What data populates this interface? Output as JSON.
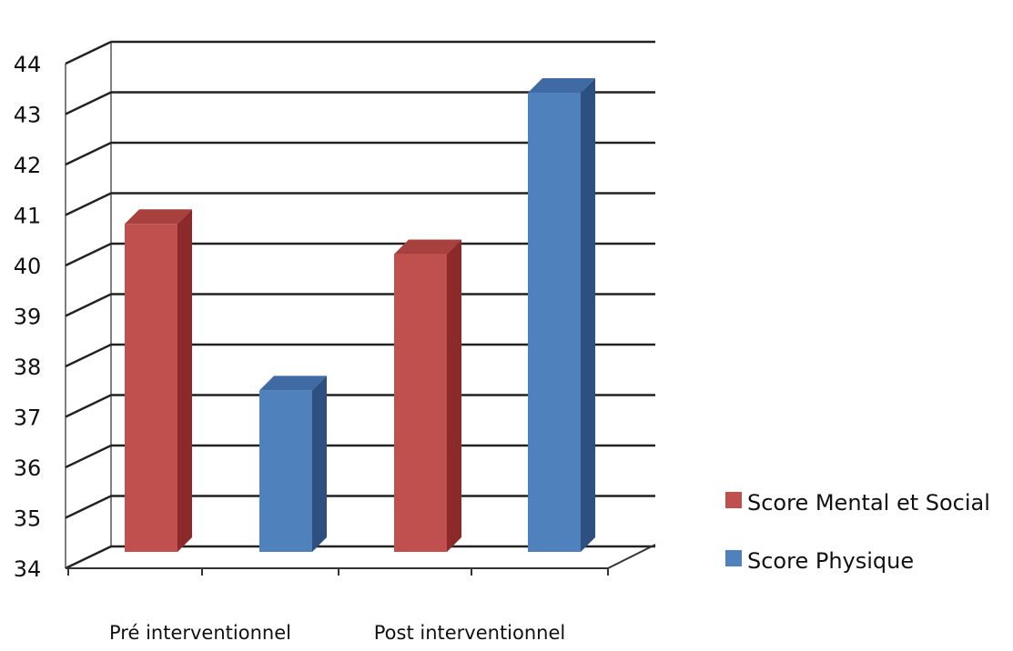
{
  "chart_data": {
    "type": "bar",
    "style": "3d-clustered-column",
    "categories": [
      "Pré interventionnel",
      "Post interventionnel"
    ],
    "series": [
      {
        "name": "Score Mental et Social",
        "values": [
          40.5,
          39.9
        ],
        "color": "#c0504d",
        "side_color": "#8b2a28",
        "top_color": "#a8403d"
      },
      {
        "name": "Score Physique",
        "values": [
          37.2,
          43.1
        ],
        "color": "#4f81bd",
        "side_color": "#2e5080",
        "top_color": "#3f6aa3"
      }
    ],
    "yticks": [
      "34",
      "35",
      "36",
      "37",
      "38",
      "39",
      "40",
      "41",
      "42",
      "43",
      "44"
    ],
    "ylim": [
      34,
      44
    ],
    "grid": true,
    "legend_position": "right",
    "title": "",
    "xlabel": "",
    "ylabel": ""
  }
}
